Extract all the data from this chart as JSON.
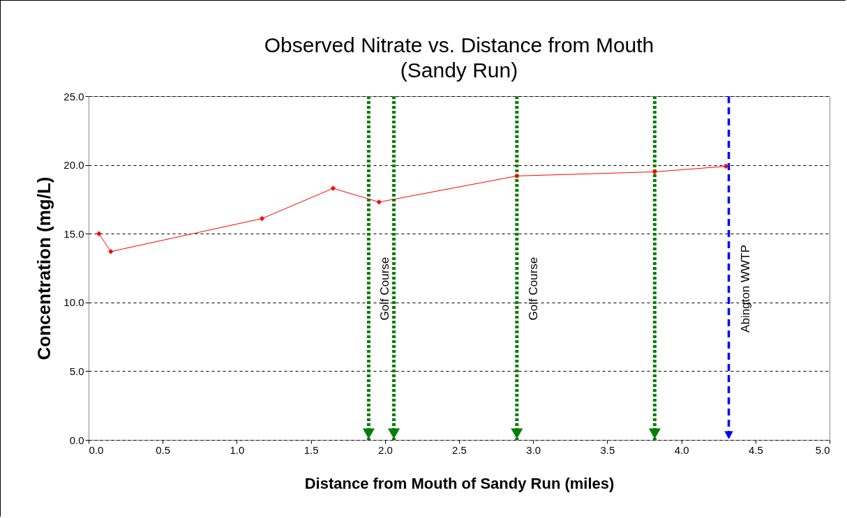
{
  "chart_data": {
    "type": "line",
    "title": "Observed Nitrate vs. Distance from Mouth",
    "subtitle": "(Sandy Run)",
    "xlabel": "Distance from Mouth of Sandy Run (miles)",
    "ylabel": "Concentration (mg/L)",
    "x": [
      0.07,
      0.15,
      1.17,
      1.65,
      1.96,
      2.89,
      3.82,
      4.3
    ],
    "series": [
      {
        "color": "#ff0000",
        "values": [
          15.0,
          13.7,
          16.1,
          18.3,
          17.3,
          19.2,
          19.5,
          19.9
        ]
      }
    ],
    "xlim": [
      0,
      5
    ],
    "xticks": [
      {
        "value": 0,
        "label": "0.0"
      },
      0.5,
      {
        "value": 1,
        "label": "1.0"
      },
      1.5,
      {
        "value": 2,
        "label": "2.0"
      },
      2.5,
      {
        "value": 3,
        "label": "3.0"
      },
      3.5,
      {
        "value": 4,
        "label": "4.0"
      },
      4.5,
      {
        "value": 5,
        "label": "5.0"
      }
    ],
    "ylim": [
      0,
      25
    ],
    "yticks": [
      {
        "value": 0,
        "label": "0.0"
      },
      {
        "value": 5,
        "label": "5.0"
      },
      {
        "value": 10,
        "label": "10.0"
      },
      {
        "value": 15,
        "label": "15.0"
      },
      {
        "value": 20,
        "label": "20.0"
      },
      {
        "value": 25,
        "label": "25.0"
      }
    ],
    "grid": "y",
    "marker": "diamond",
    "line_style": "solid",
    "ref_lines": [
      {
        "axis": "x",
        "value": 1.89,
        "label": "Golf Course",
        "color": "#008000",
        "line_style": "dotted"
      },
      {
        "axis": "x",
        "value": 2.06,
        "color": "#008000",
        "line_style": "dotted"
      },
      {
        "axis": "x",
        "value": 2.89,
        "label": "Golf Course",
        "color": "#008000",
        "line_style": "dotted"
      },
      {
        "axis": "x",
        "value": 3.82,
        "color": "#008000",
        "line_style": "dotted"
      },
      {
        "axis": "x",
        "value": 4.32,
        "label": "Abington WWTP",
        "color": "#0000ff",
        "line_style": "dashed"
      }
    ]
  }
}
